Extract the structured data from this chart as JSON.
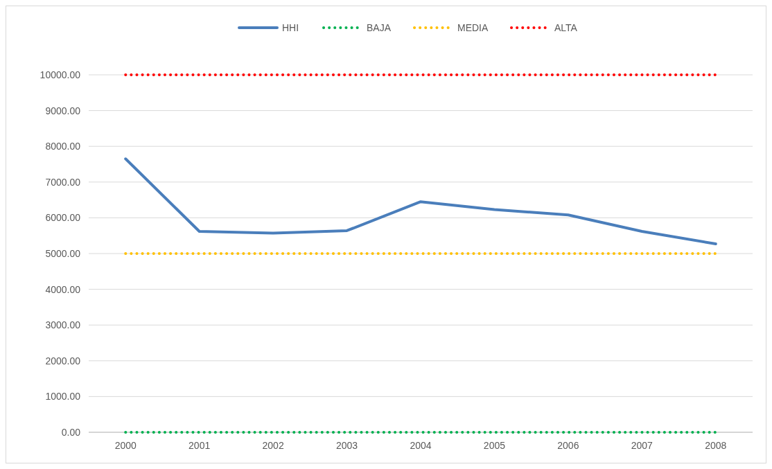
{
  "chart_data": {
    "type": "line",
    "categories": [
      "2000",
      "2001",
      "2002",
      "2003",
      "2004",
      "2005",
      "2006",
      "2007",
      "2008"
    ],
    "series": [
      {
        "name": "HHI",
        "color": "#4a7ebb",
        "line_style": "solid",
        "values": [
          7650,
          5620,
          5570,
          5640,
          6450,
          6230,
          6080,
          5620,
          5270
        ]
      },
      {
        "name": "BAJA",
        "color": "#00b050",
        "line_style": "dotted",
        "values": [
          0,
          0,
          0,
          0,
          0,
          0,
          0,
          0,
          0
        ]
      },
      {
        "name": "MEDIA",
        "color": "#ffc000",
        "line_style": "dotted",
        "values": [
          5000,
          5000,
          5000,
          5000,
          5000,
          5000,
          5000,
          5000,
          5000
        ]
      },
      {
        "name": "ALTA",
        "color": "#ff0000",
        "line_style": "dotted",
        "values": [
          10000,
          10000,
          10000,
          10000,
          10000,
          10000,
          10000,
          10000,
          10000
        ]
      }
    ],
    "ylim": [
      0,
      10000
    ],
    "yticks": [
      {
        "value": 0,
        "label": "0.00"
      },
      {
        "value": 1000,
        "label": "1000.00"
      },
      {
        "value": 2000,
        "label": "2000.00"
      },
      {
        "value": 3000,
        "label": "3000.00"
      },
      {
        "value": 4000,
        "label": "4000.00"
      },
      {
        "value": 5000,
        "label": "5000.00"
      },
      {
        "value": 6000,
        "label": "6000.00"
      },
      {
        "value": 7000,
        "label": "7000.00"
      },
      {
        "value": 8000,
        "label": "8000.00"
      },
      {
        "value": 9000,
        "label": "9000.00"
      },
      {
        "value": 10000,
        "label": "10000.00"
      }
    ],
    "grid": "y",
    "legend": "top"
  }
}
